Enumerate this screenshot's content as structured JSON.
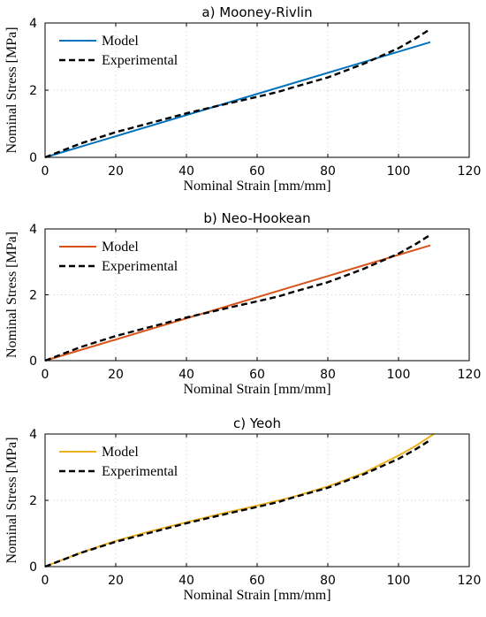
{
  "chart_data": [
    {
      "type": "line",
      "title": "a) Mooney-Rivlin",
      "xlabel": "Nominal Strain [mm/mm]",
      "ylabel": "Nominal Stress [MPa]",
      "xlim": [
        0,
        120
      ],
      "ylim": [
        0,
        4
      ],
      "xticks": [
        "0",
        "20",
        "40",
        "60",
        "80",
        "100",
        "120"
      ],
      "yticks": [
        "0",
        "2",
        "4"
      ],
      "grid": true,
      "legend_position": "top-left",
      "series": [
        {
          "name": "Model",
          "color": "#0072BD",
          "style": "solid",
          "x": [
            0,
            109
          ],
          "y": [
            0,
            3.43
          ]
        },
        {
          "name": "Experimental",
          "color": "#000000",
          "style": "dashed",
          "x": [
            0,
            10,
            20,
            30,
            40,
            50,
            60,
            66,
            70,
            80,
            90,
            100,
            105,
            109
          ],
          "y": [
            0,
            0.41,
            0.75,
            1.03,
            1.31,
            1.56,
            1.8,
            1.95,
            2.08,
            2.38,
            2.78,
            3.25,
            3.55,
            3.82
          ]
        }
      ]
    },
    {
      "type": "line",
      "title": "b) Neo-Hookean",
      "xlabel": "Nominal Strain [mm/mm]",
      "ylabel": "Nominal Stress [MPa]",
      "xlim": [
        0,
        120
      ],
      "ylim": [
        0,
        4
      ],
      "xticks": [
        "0",
        "20",
        "40",
        "60",
        "80",
        "100",
        "120"
      ],
      "yticks": [
        "0",
        "2",
        "4"
      ],
      "grid": true,
      "legend_position": "top-left",
      "series": [
        {
          "name": "Model",
          "color": "#D95319",
          "style": "solid",
          "x": [
            0,
            109
          ],
          "y": [
            0,
            3.5
          ]
        },
        {
          "name": "Experimental",
          "color": "#000000",
          "style": "dashed",
          "x": [
            0,
            10,
            20,
            30,
            40,
            50,
            60,
            66,
            70,
            80,
            90,
            100,
            105,
            109
          ],
          "y": [
            0,
            0.41,
            0.75,
            1.03,
            1.31,
            1.56,
            1.8,
            1.95,
            2.08,
            2.38,
            2.78,
            3.25,
            3.55,
            3.82
          ]
        }
      ]
    },
    {
      "type": "line",
      "title": "c) Yeoh",
      "xlabel": "Nominal Strain [mm/mm]",
      "ylabel": "Nominal Stress [MPa]",
      "xlim": [
        0,
        120
      ],
      "ylim": [
        0,
        4
      ],
      "xticks": [
        "0",
        "20",
        "40",
        "60",
        "80",
        "100",
        "120"
      ],
      "yticks": [
        "0",
        "2",
        "4"
      ],
      "grid": true,
      "legend_position": "top-left",
      "series": [
        {
          "name": "Model",
          "color": "#EDB120",
          "style": "solid",
          "x": [
            0,
            10,
            20,
            30,
            40,
            50,
            60,
            70,
            80,
            90,
            100,
            105,
            110
          ],
          "y": [
            0,
            0.42,
            0.78,
            1.07,
            1.34,
            1.6,
            1.84,
            2.1,
            2.42,
            2.82,
            3.35,
            3.65,
            4.0
          ]
        },
        {
          "name": "Experimental",
          "color": "#000000",
          "style": "dashed",
          "x": [
            0,
            10,
            20,
            30,
            40,
            50,
            60,
            66,
            70,
            80,
            90,
            100,
            105,
            109
          ],
          "y": [
            0,
            0.41,
            0.75,
            1.03,
            1.31,
            1.56,
            1.8,
            1.95,
            2.08,
            2.38,
            2.78,
            3.25,
            3.55,
            3.82
          ]
        }
      ]
    }
  ]
}
